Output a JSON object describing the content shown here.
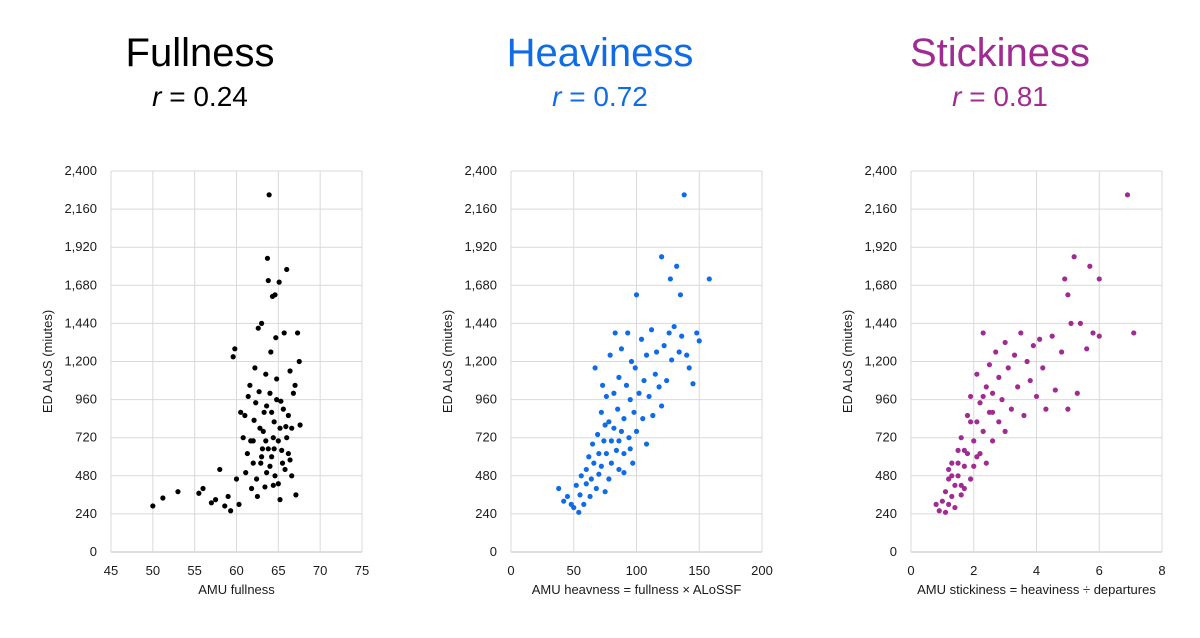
{
  "panels": [
    {
      "title": "Fullness",
      "r_label": "r",
      "r_eq": " = 0.24",
      "color": "#000000",
      "chart_data": {
        "type": "scatter",
        "xlabel": "AMU fullness",
        "ylabel": "ED ALoS (miutes)",
        "xlim": [
          45,
          75
        ],
        "ylim": [
          0,
          2400
        ],
        "xticks": [
          "45",
          "50",
          "55",
          "60",
          "65",
          "70",
          "75"
        ],
        "yticks": [
          "0",
          "240",
          "480",
          "720",
          "960",
          "1,200",
          "1,440",
          "1,680",
          "1,920",
          "2,160",
          "2,400"
        ],
        "grid": true,
        "points": [
          [
            50.0,
            290
          ],
          [
            51.2,
            340
          ],
          [
            53.0,
            380
          ],
          [
            55.5,
            370
          ],
          [
            56.0,
            400
          ],
          [
            57.0,
            310
          ],
          [
            57.5,
            330
          ],
          [
            58.0,
            520
          ],
          [
            58.6,
            290
          ],
          [
            59.0,
            350
          ],
          [
            59.3,
            260
          ],
          [
            59.6,
            1230
          ],
          [
            59.8,
            1280
          ],
          [
            60.0,
            460
          ],
          [
            60.3,
            300
          ],
          [
            60.8,
            720
          ],
          [
            61.0,
            860
          ],
          [
            61.3,
            620
          ],
          [
            61.6,
            1050
          ],
          [
            61.8,
            400
          ],
          [
            62.0,
            560
          ],
          [
            62.2,
            1160
          ],
          [
            62.3,
            940
          ],
          [
            62.5,
            350
          ],
          [
            62.6,
            1410
          ],
          [
            62.8,
            780
          ],
          [
            63.0,
            1440
          ],
          [
            63.1,
            650
          ],
          [
            63.3,
            880
          ],
          [
            63.5,
            1120
          ],
          [
            63.6,
            500
          ],
          [
            63.7,
            1850
          ],
          [
            63.8,
            1710
          ],
          [
            63.9,
            2250
          ],
          [
            64.0,
            1000
          ],
          [
            64.1,
            1260
          ],
          [
            64.2,
            600
          ],
          [
            64.3,
            1610
          ],
          [
            64.4,
            420
          ],
          [
            64.5,
            820
          ],
          [
            64.6,
            1620
          ],
          [
            64.7,
            1350
          ],
          [
            64.8,
            1090
          ],
          [
            65.0,
            700
          ],
          [
            65.1,
            1700
          ],
          [
            65.2,
            330
          ],
          [
            65.3,
            950
          ],
          [
            65.5,
            560
          ],
          [
            65.7,
            1380
          ],
          [
            65.9,
            790
          ],
          [
            66.0,
            1780
          ],
          [
            66.2,
            620
          ],
          [
            66.4,
            1140
          ],
          [
            66.6,
            480
          ],
          [
            66.8,
            1000
          ],
          [
            67.0,
            1050
          ],
          [
            67.1,
            360
          ],
          [
            67.3,
            1380
          ],
          [
            67.5,
            1200
          ],
          [
            67.6,
            800
          ],
          [
            60.5,
            880
          ],
          [
            61.1,
            500
          ],
          [
            61.4,
            980
          ],
          [
            61.7,
            700
          ],
          [
            62.1,
            830
          ],
          [
            62.4,
            460
          ],
          [
            62.7,
            1010
          ],
          [
            62.9,
            560
          ],
          [
            63.2,
            760
          ],
          [
            63.4,
            410
          ],
          [
            63.6,
            920
          ],
          [
            63.8,
            650
          ],
          [
            64.0,
            540
          ],
          [
            64.2,
            880
          ],
          [
            64.4,
            720
          ],
          [
            64.6,
            480
          ],
          [
            64.8,
            960
          ],
          [
            65.0,
            430
          ],
          [
            65.2,
            780
          ],
          [
            65.4,
            640
          ],
          [
            65.6,
            900
          ],
          [
            65.8,
            520
          ],
          [
            66.0,
            720
          ],
          [
            66.2,
            860
          ],
          [
            66.4,
            580
          ],
          [
            66.6,
            780
          ],
          [
            63.0,
            600
          ],
          [
            63.5,
            700
          ],
          [
            64.5,
            650
          ],
          [
            62.0,
            700
          ]
        ]
      }
    },
    {
      "title": "Heaviness",
      "r_label": "r",
      "r_eq": " = 0.72",
      "color": "#0F6CE6",
      "chart_data": {
        "type": "scatter",
        "xlabel": "AMU heavness = fullness × ALoSSF",
        "ylabel": "ED ALoS (miutes)",
        "xlim": [
          0,
          200
        ],
        "ylim": [
          0,
          2400
        ],
        "xticks": [
          "0",
          "50",
          "100",
          "150",
          "200"
        ],
        "yticks": [
          "0",
          "240",
          "480",
          "720",
          "960",
          "1,200",
          "1,440",
          "1,680",
          "1,920",
          "2,160",
          "2,400"
        ],
        "grid": true,
        "points": [
          [
            38,
            400
          ],
          [
            42,
            320
          ],
          [
            45,
            350
          ],
          [
            48,
            300
          ],
          [
            50,
            280
          ],
          [
            52,
            420
          ],
          [
            54,
            250
          ],
          [
            55,
            360
          ],
          [
            56,
            480
          ],
          [
            58,
            300
          ],
          [
            60,
            520
          ],
          [
            60,
            430
          ],
          [
            62,
            600
          ],
          [
            63,
            350
          ],
          [
            64,
            460
          ],
          [
            65,
            680
          ],
          [
            66,
            560
          ],
          [
            67,
            1160
          ],
          [
            68,
            400
          ],
          [
            69,
            740
          ],
          [
            70,
            620
          ],
          [
            70,
            490
          ],
          [
            72,
            880
          ],
          [
            72,
            540
          ],
          [
            73,
            1050
          ],
          [
            74,
            700
          ],
          [
            75,
            380
          ],
          [
            76,
            980
          ],
          [
            76,
            620
          ],
          [
            78,
            820
          ],
          [
            78,
            460
          ],
          [
            79,
            1240
          ],
          [
            80,
            700
          ],
          [
            80,
            560
          ],
          [
            82,
            1000
          ],
          [
            82,
            780
          ],
          [
            83,
            1380
          ],
          [
            84,
            640
          ],
          [
            85,
            900
          ],
          [
            86,
            1100
          ],
          [
            86,
            520
          ],
          [
            88,
            760
          ],
          [
            88,
            1280
          ],
          [
            90,
            840
          ],
          [
            90,
            620
          ],
          [
            92,
            1050
          ],
          [
            93,
            1380
          ],
          [
            94,
            720
          ],
          [
            95,
            960
          ],
          [
            96,
            1200
          ],
          [
            97,
            560
          ],
          [
            98,
            880
          ],
          [
            99,
            1160
          ],
          [
            100,
            1620
          ],
          [
            100,
            760
          ],
          [
            102,
            1000
          ],
          [
            104,
            1340
          ],
          [
            105,
            840
          ],
          [
            106,
            1080
          ],
          [
            108,
            680
          ],
          [
            108,
            1240
          ],
          [
            110,
            980
          ],
          [
            112,
            1400
          ],
          [
            113,
            860
          ],
          [
            115,
            1120
          ],
          [
            116,
            1260
          ],
          [
            118,
            1040
          ],
          [
            120,
            1860
          ],
          [
            120,
            920
          ],
          [
            122,
            1300
          ],
          [
            124,
            1080
          ],
          [
            126,
            1380
          ],
          [
            127,
            1720
          ],
          [
            128,
            1210
          ],
          [
            130,
            1420
          ],
          [
            132,
            1800
          ],
          [
            134,
            1260
          ],
          [
            135,
            1620
          ],
          [
            136,
            1360
          ],
          [
            138,
            2250
          ],
          [
            140,
            1240
          ],
          [
            142,
            1160
          ],
          [
            145,
            1060
          ],
          [
            148,
            1380
          ],
          [
            150,
            1330
          ],
          [
            158,
            1720
          ],
          [
            86,
            700
          ],
          [
            90,
            500
          ],
          [
            95,
            650
          ],
          [
            75,
            800
          ]
        ]
      }
    },
    {
      "title": "Stickiness",
      "r_label": "r",
      "r_eq": " = 0.81",
      "color": "#A02B93",
      "chart_data": {
        "type": "scatter",
        "xlabel": "AMU stickiness = heaviness ÷ departures",
        "ylabel": "ED ALoS (miutes)",
        "xlim": [
          0,
          8
        ],
        "ylim": [
          0,
          2400
        ],
        "xticks": [
          "0",
          "2",
          "4",
          "6",
          "8"
        ],
        "yticks": [
          "0",
          "240",
          "480",
          "720",
          "960",
          "1,200",
          "1,440",
          "1,680",
          "1,920",
          "2,160",
          "2,400"
        ],
        "grid": true,
        "points": [
          [
            0.8,
            300
          ],
          [
            0.9,
            260
          ],
          [
            1.0,
            320
          ],
          [
            1.1,
            380
          ],
          [
            1.1,
            250
          ],
          [
            1.2,
            460
          ],
          [
            1.2,
            300
          ],
          [
            1.3,
            560
          ],
          [
            1.3,
            350
          ],
          [
            1.4,
            420
          ],
          [
            1.4,
            280
          ],
          [
            1.5,
            640
          ],
          [
            1.5,
            480
          ],
          [
            1.6,
            360
          ],
          [
            1.6,
            720
          ],
          [
            1.7,
            540
          ],
          [
            1.7,
            400
          ],
          [
            1.8,
            860
          ],
          [
            1.8,
            620
          ],
          [
            1.9,
            460
          ],
          [
            1.9,
            980
          ],
          [
            2.0,
            700
          ],
          [
            2.0,
            540
          ],
          [
            2.1,
            1120
          ],
          [
            2.1,
            820
          ],
          [
            2.2,
            620
          ],
          [
            2.2,
            940
          ],
          [
            2.3,
            1380
          ],
          [
            2.3,
            760
          ],
          [
            2.4,
            1040
          ],
          [
            2.4,
            560
          ],
          [
            2.5,
            880
          ],
          [
            2.5,
            1180
          ],
          [
            2.6,
            700
          ],
          [
            2.6,
            1000
          ],
          [
            2.7,
            1260
          ],
          [
            2.8,
            820
          ],
          [
            2.8,
            1100
          ],
          [
            2.9,
            960
          ],
          [
            3.0,
            1320
          ],
          [
            3.0,
            760
          ],
          [
            3.1,
            1160
          ],
          [
            3.2,
            900
          ],
          [
            3.3,
            1240
          ],
          [
            3.4,
            1040
          ],
          [
            3.5,
            1380
          ],
          [
            3.6,
            860
          ],
          [
            3.7,
            1200
          ],
          [
            3.8,
            1080
          ],
          [
            3.9,
            1300
          ],
          [
            4.0,
            980
          ],
          [
            4.1,
            1340
          ],
          [
            4.2,
            1160
          ],
          [
            4.3,
            900
          ],
          [
            4.5,
            1360
          ],
          [
            4.6,
            1020
          ],
          [
            4.8,
            1260
          ],
          [
            4.9,
            1720
          ],
          [
            5.0,
            1620
          ],
          [
            5.0,
            900
          ],
          [
            5.1,
            1440
          ],
          [
            5.2,
            1860
          ],
          [
            5.3,
            1000
          ],
          [
            5.4,
            1440
          ],
          [
            5.6,
            1280
          ],
          [
            5.7,
            1800
          ],
          [
            5.8,
            1380
          ],
          [
            6.0,
            1720
          ],
          [
            6.0,
            1360
          ],
          [
            6.9,
            2250
          ],
          [
            7.1,
            1380
          ],
          [
            1.5,
            560
          ],
          [
            1.7,
            640
          ],
          [
            1.9,
            820
          ],
          [
            2.1,
            600
          ],
          [
            2.3,
            980
          ],
          [
            2.6,
            880
          ],
          [
            1.3,
            480
          ],
          [
            1.2,
            520
          ],
          [
            1.6,
            420
          ]
        ]
      }
    }
  ]
}
